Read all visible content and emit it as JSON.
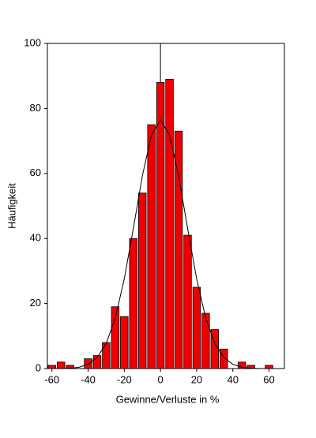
{
  "chart_data": {
    "type": "histogram",
    "xlabel": "Gewinne/Verluste in %",
    "ylabel": "Häufigkeit",
    "bins": [
      -62.5,
      -57.5,
      -52.5,
      -47.5,
      -42.5,
      -37.5,
      -32.5,
      -27.5,
      -22.5,
      -17.5,
      -12.5,
      -7.5,
      -2.5,
      2.5,
      7.5,
      12.5,
      17.5,
      22.5,
      27.5,
      32.5,
      37.5,
      42.5,
      47.5,
      52.5,
      57.5,
      62.5
    ],
    "values": [
      1,
      2,
      1,
      0,
      3,
      4,
      8,
      19,
      16,
      40,
      54,
      75,
      88,
      89,
      73,
      41,
      25,
      17,
      12,
      6,
      0,
      2,
      1,
      0,
      1
    ],
    "color": "#ee0000",
    "curve": {
      "color": "#000000",
      "x": [
        -60,
        -55,
        -50,
        -45,
        -40,
        -35,
        -30,
        -25,
        -20,
        -15,
        -10,
        -5,
        0,
        5,
        10,
        15,
        20,
        25,
        30,
        35,
        40,
        45,
        50,
        55,
        60
      ],
      "values": [
        0,
        0,
        0.1,
        0.4,
        1.3,
        3.4,
        7.7,
        15.5,
        27.6,
        43.1,
        59.3,
        71.8,
        76.5,
        71.8,
        59.3,
        43.1,
        27.6,
        15.5,
        7.7,
        3.4,
        1.3,
        0.4,
        0.1,
        0,
        0
      ]
    },
    "xlim": [
      -62.5,
      68.5
    ],
    "ylim": [
      0,
      100
    ],
    "xticks": [
      -60,
      -40,
      -20,
      0,
      20,
      40,
      60
    ],
    "yticks": [
      0,
      20,
      40,
      60,
      80,
      100
    ]
  }
}
